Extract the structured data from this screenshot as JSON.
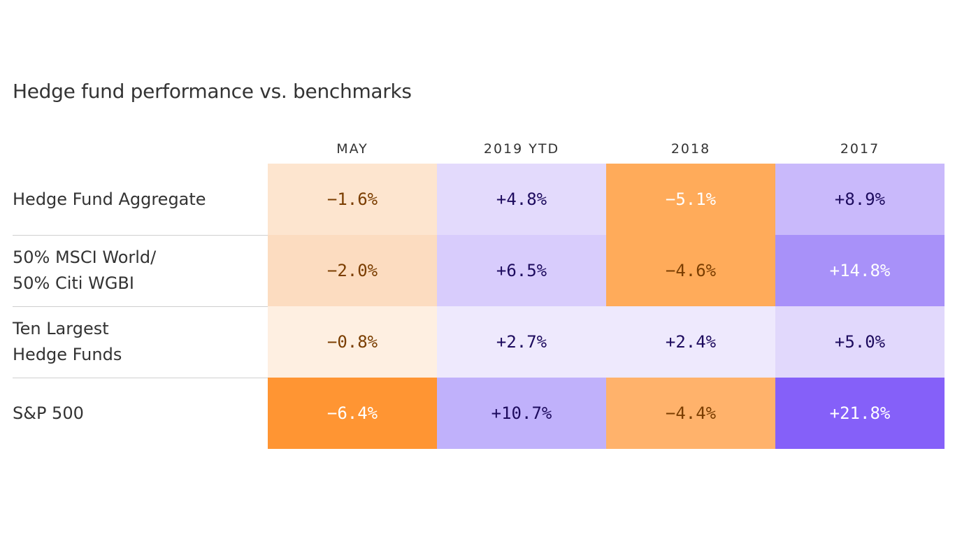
{
  "chart_data": {
    "type": "table",
    "title": "Hedge fund performance vs. benchmarks",
    "columns": [
      "MAY",
      "2019 YTD",
      "2018",
      "2017"
    ],
    "rows": [
      {
        "label_lines": [
          "Hedge Fund Aggregate"
        ],
        "values": [
          "-1.6%",
          "+4.8%",
          "-5.1%",
          "+8.9%"
        ],
        "colors": [
          "#fde5cf",
          "#e3dafc",
          "#ffab5a",
          "#c9b9fb"
        ],
        "text_colors": [
          "#7a3d00",
          "#1d0b5e",
          "#ffffff",
          "#1d0b5e"
        ]
      },
      {
        "label_lines": [
          "50% MSCI World/",
          "50% Citi WGBI"
        ],
        "values": [
          "-2.0%",
          "+6.5%",
          "-4.6%",
          "+14.8%"
        ],
        "colors": [
          "#fcdcc0",
          "#d8ccfc",
          "#ffab5a",
          "#a891f9"
        ],
        "text_colors": [
          "#7a3d00",
          "#1d0b5e",
          "#7a3d00",
          "#ffffff"
        ]
      },
      {
        "label_lines": [
          "Ten Largest",
          "Hedge Funds"
        ],
        "values": [
          "-0.8%",
          "+2.7%",
          "+2.4%",
          "+5.0%"
        ],
        "colors": [
          "#feefe1",
          "#eee9fd",
          "#eee9fd",
          "#e1d8fc"
        ],
        "text_colors": [
          "#7a3d00",
          "#1d0b5e",
          "#1d0b5e",
          "#1d0b5e"
        ]
      },
      {
        "label_lines": [
          "S&P 500"
        ],
        "values": [
          "-6.4%",
          "+10.7%",
          "-4.4%",
          "+21.8%"
        ],
        "colors": [
          "#ff9533",
          "#c0b1fb",
          "#ffb26b",
          "#8560f9"
        ],
        "text_colors": [
          "#ffffff",
          "#1d0b5e",
          "#7a3d00",
          "#ffffff"
        ]
      }
    ]
  }
}
